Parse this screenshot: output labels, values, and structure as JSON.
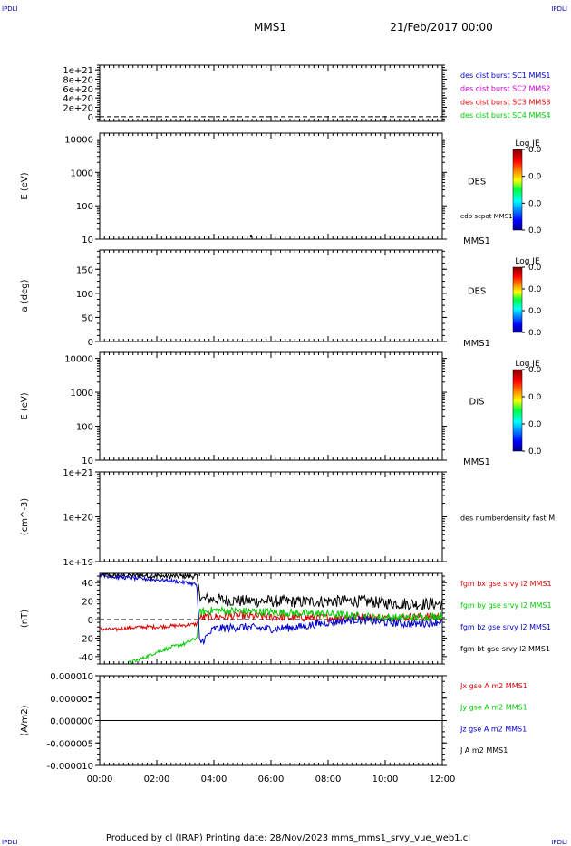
{
  "header": {
    "corner_left": "IPDLI",
    "corner_right": "IPDLI",
    "title": "MMS1",
    "date": "21/Feb/2017 00:00"
  },
  "footer": {
    "produced": "Produced by cl (IRAP)   Printing date: 28/Nov/2023   mms_mms1_srvy_vue_web1.cl",
    "corner_left": "IPDLI",
    "corner_right": "IPDLI"
  },
  "colors": {
    "blue": "#0000cc",
    "magenta": "#cc00cc",
    "red": "#dd0000",
    "green": "#00cc00",
    "black": "#000000"
  },
  "time_axis": {
    "range_hours": [
      0,
      12
    ],
    "ticks": [
      {
        "h": 0,
        "label": "00:00"
      },
      {
        "h": 2,
        "label": "02:00"
      },
      {
        "h": 4,
        "label": "04:00"
      },
      {
        "h": 6,
        "label": "06:00"
      },
      {
        "h": 8,
        "label": "08:00"
      },
      {
        "h": 10,
        "label": "10:00"
      },
      {
        "h": 12,
        "label": "12:00"
      }
    ]
  },
  "chart_data": [
    {
      "type": "line",
      "ylabel": "",
      "scale": "linear",
      "ylim": [
        -1e+20,
        1.1e+21
      ],
      "ticks": [
        {
          "v": 1e+21,
          "label": "1e+21"
        },
        {
          "v": 8e+20,
          "label": "8e+20"
        },
        {
          "v": 6e+20,
          "label": "6e+20"
        },
        {
          "v": 4e+20,
          "label": "4e+20"
        },
        {
          "v": 2e+20,
          "label": "2e+20"
        },
        {
          "v": 0,
          "label": "0"
        }
      ],
      "zero_line": true,
      "legend": [
        {
          "text": "des dist burst SC1 MMS1",
          "color": "blue"
        },
        {
          "text": "des dist burst SC2 MMS2",
          "color": "magenta"
        },
        {
          "text": "des dist burst SC3 MMS3",
          "color": "red"
        },
        {
          "text": "des dist burst SC4 MMS4",
          "color": "green"
        }
      ]
    },
    {
      "type": "heatmap",
      "ylabel": "E (eV)",
      "scale": "log",
      "ylim": [
        10,
        15000
      ],
      "ticks": [
        {
          "v": 10000,
          "label": "10000"
        },
        {
          "v": 1000,
          "label": "1000"
        },
        {
          "v": 100,
          "label": "100"
        },
        {
          "v": 10,
          "label": "10"
        }
      ],
      "name": "DES",
      "spacecraft": "MMS1",
      "note": "edp scpot MMS1",
      "colorbar": {
        "title": "Log JE",
        "labels": [
          "0.0",
          "0.0",
          "0.0",
          "0.0"
        ]
      },
      "marks": [
        {
          "h": 5.3,
          "v": 12
        }
      ]
    },
    {
      "type": "heatmap",
      "ylabel": "a (deg)",
      "scale": "linear",
      "ylim": [
        0,
        190
      ],
      "ticks": [
        {
          "v": 150,
          "label": "150"
        },
        {
          "v": 100,
          "label": "100"
        },
        {
          "v": 50,
          "label": "50"
        },
        {
          "v": 0,
          "label": "0"
        }
      ],
      "name": "DES",
      "spacecraft": "MMS1",
      "colorbar": {
        "title": "Log JE",
        "labels": [
          "0.0",
          "0.0",
          "0.0",
          "0.0"
        ]
      }
    },
    {
      "type": "heatmap",
      "ylabel": "E (eV)",
      "scale": "log",
      "ylim": [
        10,
        15000
      ],
      "ticks": [
        {
          "v": 10000,
          "label": "10000"
        },
        {
          "v": 1000,
          "label": "1000"
        },
        {
          "v": 100,
          "label": "100"
        },
        {
          "v": 10,
          "label": "10"
        }
      ],
      "name": "DIS",
      "spacecraft": "MMS1",
      "colorbar": {
        "title": "Log JE",
        "labels": [
          "0.0",
          "0.0",
          "0.0",
          "0.0"
        ]
      }
    },
    {
      "type": "line",
      "ylabel": "(cm^-3)",
      "scale": "log",
      "ylim": [
        1e+19,
        1e+21
      ],
      "ticks": [
        {
          "v": 1e+21,
          "label": "1e+21"
        },
        {
          "v": 1e+20,
          "label": "1e+20"
        },
        {
          "v": 1e+19,
          "label": "1e+19"
        }
      ],
      "legend": [
        {
          "text": "des numberdensity fast M",
          "color": "black"
        }
      ]
    },
    {
      "type": "line",
      "ylabel": "(nT)",
      "scale": "linear",
      "ylim": [
        -48,
        50
      ],
      "ticks": [
        {
          "v": 40,
          "label": "40"
        },
        {
          "v": 20,
          "label": "20"
        },
        {
          "v": 0,
          "label": "0"
        },
        {
          "v": -20,
          "label": "-20"
        },
        {
          "v": -40,
          "label": "-40"
        }
      ],
      "zero_line": true,
      "legend": [
        {
          "text": "fgm bx gse srvy l2 MMS1",
          "color": "red"
        },
        {
          "text": "fgm by gse srvy l2 MMS1",
          "color": "green"
        },
        {
          "text": "fgm bz gse srvy l2 MMS1",
          "color": "blue"
        },
        {
          "text": "fgm bt gse srvy l2 MMS1",
          "color": "black"
        }
      ],
      "series": [
        {
          "name": "fgm bt gse srvy l2 MMS1",
          "color": "black",
          "noise": 3,
          "x": [
            0,
            0.5,
            1.0,
            1.5,
            2.0,
            2.5,
            3.0,
            3.4,
            3.5,
            3.6,
            4.0,
            5.0,
            6.0,
            7.0,
            8.0,
            9.0,
            10.0,
            11.0,
            12.0
          ],
          "y": [
            48,
            48,
            48,
            48,
            47,
            47,
            47,
            47,
            28,
            22,
            22,
            20,
            20,
            19,
            20,
            20,
            18,
            17,
            17
          ]
        },
        {
          "name": "fgm bx gse srvy l2 MMS1",
          "color": "red",
          "noise": 2,
          "x": [
            0,
            0.5,
            1.0,
            1.5,
            2.0,
            2.5,
            3.0,
            3.4,
            3.5,
            4.0,
            5.0,
            6.0,
            7.0,
            8.0,
            9.0,
            10.0,
            11.0,
            12.0
          ],
          "y": [
            -10,
            -11,
            -9,
            -8,
            -8,
            -7,
            -6,
            -5,
            2,
            3,
            4,
            3,
            2,
            2,
            3,
            2,
            3,
            3
          ]
        },
        {
          "name": "fgm by gse srvy l2 MMS1",
          "color": "green",
          "noise": 2,
          "x": [
            1.0,
            1.5,
            2.0,
            2.5,
            3.0,
            3.4,
            3.5,
            4.0,
            5.0,
            6.0,
            7.0,
            8.0,
            9.0,
            10.0,
            11.0,
            12.0
          ],
          "y": [
            -47,
            -42,
            -35,
            -30,
            -26,
            -20,
            8,
            10,
            9,
            8,
            7,
            6,
            4,
            2,
            2,
            4
          ]
        },
        {
          "name": "fgm bz gse srvy l2 MMS1",
          "color": "blue",
          "noise": 2,
          "x": [
            0,
            0.5,
            1.0,
            1.5,
            2.0,
            2.5,
            3.0,
            3.4,
            3.5,
            3.7,
            4.0,
            5.0,
            6.0,
            7.0,
            8.0,
            9.0,
            10.0,
            11.0,
            12.0
          ],
          "y": [
            48,
            46,
            45,
            44,
            43,
            42,
            40,
            38,
            -25,
            -20,
            -10,
            -8,
            -10,
            -8,
            -3,
            0,
            -3,
            -5,
            -2
          ]
        }
      ]
    },
    {
      "type": "line",
      "ylabel": "(A/m2)",
      "scale": "linear",
      "ylim": [
        -1e-05,
        1e-05
      ],
      "ticks": [
        {
          "v": 1e-05,
          "label": "0.000010"
        },
        {
          "v": 5e-06,
          "label": "0.000005"
        },
        {
          "v": 0,
          "label": "0.000000"
        },
        {
          "v": -5e-06,
          "label": "-0.000005"
        },
        {
          "v": -1e-05,
          "label": "-0.000010"
        }
      ],
      "legend": [
        {
          "text": "Jx gse A m2 MMS1",
          "color": "red"
        },
        {
          "text": "Jy gse A m2 MMS1",
          "color": "green"
        },
        {
          "text": "Jz gse A m2 MMS1",
          "color": "blue"
        },
        {
          "text": "J A m2 MMS1",
          "color": "black"
        }
      ],
      "series": [
        {
          "name": "J A m2 MMS1",
          "color": "black",
          "noise": 0,
          "x": [
            0,
            12
          ],
          "y": [
            0,
            0
          ]
        }
      ]
    }
  ]
}
